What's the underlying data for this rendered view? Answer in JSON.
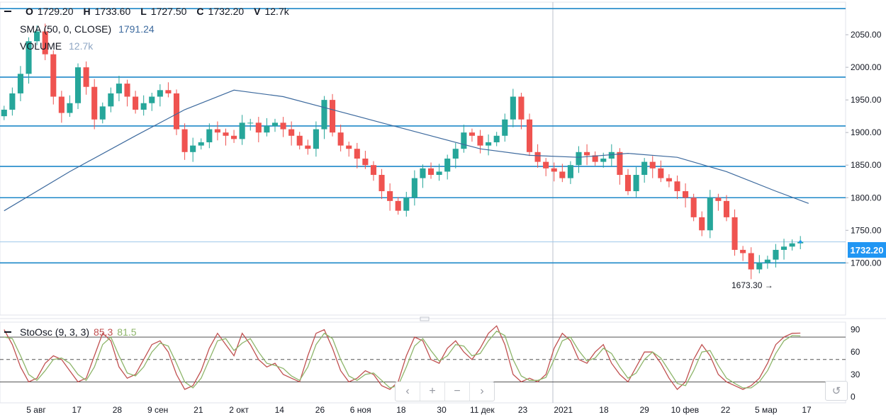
{
  "header": {
    "o_key": "O",
    "o_val": "1729.20",
    "h_key": "H",
    "h_val": "1733.60",
    "l_key": "L",
    "l_val": "1727.50",
    "c_key": "C",
    "c_val": "1732.20",
    "v_key": "V",
    "v_val": "12.7k"
  },
  "legend": {
    "sma_label": "SMA (50, 0, CLOSE)",
    "sma_value": "1791.24",
    "volume_label": "VOLUME",
    "volume_value": "12.7k"
  },
  "oscillator": {
    "label": "StoOsc (9, 3, 3)",
    "k_value": "85.3",
    "d_value": "81.5"
  },
  "price_label": "1732.20",
  "min_label": "1673.30",
  "nav": {
    "left": "‹",
    "plus": "+",
    "minus": "−",
    "right": "›",
    "reset": "↺"
  },
  "colors": {
    "up": "#26a69a",
    "down": "#ef5350",
    "sma": "#3d6a9e",
    "hline": "#1e88c8",
    "k_line": "#c05050",
    "d_line": "#8db56a",
    "accent": "#2196f3"
  },
  "chart_data": [
    {
      "type": "candlestick",
      "y_ticks": [
        "1700.00",
        "1750.00",
        "1800.00",
        "1850.00",
        "1900.00",
        "1950.00",
        "2000.00",
        "2050.00"
      ],
      "x_ticks": [
        "5 авг",
        "17",
        "28",
        "9 сен",
        "21",
        "2 окт",
        "14",
        "26",
        "6 ноя",
        "18",
        "30",
        "11 дек",
        "23",
        "2021",
        "18",
        "29",
        "10 фев",
        "22",
        "5 мар",
        "17"
      ],
      "ylim": [
        1620,
        2100
      ],
      "horizontal_lines": [
        2090,
        1985,
        1910,
        1848,
        1800,
        1700
      ],
      "last_price": 1732.2,
      "min_annotation": 1673.3,
      "close": [
        1935,
        1960,
        1990,
        2040,
        2055,
        2020,
        1955,
        1930,
        1945,
        2000,
        1970,
        1920,
        1940,
        1960,
        1975,
        1955,
        1935,
        1945,
        1955,
        1965,
        1960,
        1905,
        1870,
        1880,
        1885,
        1905,
        1900,
        1895,
        1890,
        1915,
        1915,
        1900,
        1910,
        1915,
        1905,
        1895,
        1880,
        1875,
        1905,
        1950,
        1900,
        1880,
        1875,
        1860,
        1850,
        1835,
        1810,
        1795,
        1780,
        1800,
        1830,
        1845,
        1835,
        1840,
        1860,
        1875,
        1900,
        1895,
        1880,
        1885,
        1895,
        1920,
        1955,
        1920,
        1870,
        1855,
        1845,
        1840,
        1830,
        1850,
        1870,
        1865,
        1855,
        1860,
        1870,
        1835,
        1810,
        1835,
        1855,
        1845,
        1830,
        1825,
        1810,
        1800,
        1770,
        1750,
        1800,
        1795,
        1770,
        1720,
        1715,
        1690,
        1700,
        1705,
        1720,
        1725,
        1730,
        1732.2
      ],
      "sma": {
        "name": "SMA (50, 0, CLOSE)",
        "points": [
          [
            0,
            1780
          ],
          [
            8,
            1840
          ],
          [
            16,
            1895
          ],
          [
            22,
            1935
          ],
          [
            28,
            1965
          ],
          [
            34,
            1955
          ],
          [
            40,
            1935
          ],
          [
            46,
            1915
          ],
          [
            52,
            1895
          ],
          [
            58,
            1875
          ],
          [
            64,
            1865
          ],
          [
            70,
            1862
          ],
          [
            76,
            1868
          ],
          [
            82,
            1862
          ],
          [
            88,
            1840
          ],
          [
            94,
            1810
          ],
          [
            98,
            1791.24
          ]
        ]
      }
    },
    {
      "type": "line",
      "title": "StoOsc (9, 3, 3)",
      "y_ticks": [
        "0",
        "30",
        "60",
        "90"
      ],
      "ylim": [
        -8,
        100
      ],
      "levels": [
        80,
        50,
        20
      ],
      "series": [
        {
          "name": "85.3",
          "values": [
            90,
            70,
            40,
            20,
            25,
            45,
            55,
            50,
            35,
            20,
            25,
            55,
            85,
            75,
            40,
            25,
            30,
            50,
            70,
            75,
            60,
            30,
            10,
            15,
            35,
            65,
            85,
            70,
            55,
            85,
            70,
            50,
            40,
            45,
            30,
            25,
            20,
            55,
            85,
            90,
            65,
            35,
            20,
            25,
            35,
            30,
            15,
            10,
            20,
            55,
            80,
            75,
            50,
            45,
            65,
            75,
            60,
            50,
            65,
            85,
            95,
            70,
            30,
            20,
            25,
            20,
            30,
            65,
            85,
            75,
            50,
            45,
            60,
            70,
            45,
            30,
            20,
            40,
            60,
            60,
            45,
            25,
            10,
            20,
            50,
            70,
            55,
            30,
            20,
            15,
            10,
            15,
            25,
            45,
            70,
            80,
            85,
            85.3
          ]
        },
        {
          "name": "81.5",
          "values": [
            80,
            78,
            55,
            30,
            22,
            35,
            50,
            52,
            45,
            30,
            22,
            40,
            70,
            80,
            55,
            32,
            28,
            40,
            60,
            72,
            68,
            45,
            20,
            12,
            25,
            50,
            75,
            78,
            62,
            72,
            78,
            60,
            45,
            42,
            38,
            28,
            22,
            40,
            70,
            85,
            78,
            50,
            28,
            22,
            30,
            32,
            22,
            12,
            15,
            40,
            68,
            78,
            62,
            48,
            55,
            70,
            68,
            55,
            58,
            75,
            88,
            82,
            50,
            28,
            22,
            22,
            26,
            50,
            75,
            80,
            62,
            48,
            52,
            65,
            58,
            40,
            25,
            32,
            50,
            60,
            52,
            35,
            18,
            15,
            35,
            60,
            62,
            42,
            25,
            18,
            12,
            12,
            20,
            35,
            58,
            75,
            82,
            81.5
          ]
        }
      ]
    }
  ]
}
